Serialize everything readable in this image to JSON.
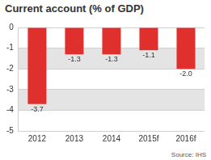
{
  "chart_data": {
    "type": "bar",
    "title": "Current account (% of GDP)",
    "categories": [
      "2012",
      "2013",
      "2014",
      "2015f",
      "2016f"
    ],
    "values": [
      -3.7,
      -1.3,
      -1.3,
      -1.1,
      -2.0
    ],
    "value_labels": [
      "-3.7",
      "-1.3",
      "-1.3",
      "-1.1",
      "-2.0"
    ],
    "data_labels": true,
    "color": "#e0302d",
    "ylim": [
      -5,
      0
    ],
    "yticks": [
      0,
      -1,
      -2,
      -3,
      -4,
      -5
    ],
    "grid": true,
    "annotations": [
      "Source: IHS"
    ]
  }
}
